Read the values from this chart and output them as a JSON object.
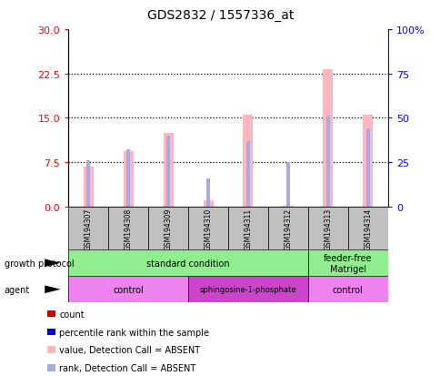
{
  "title": "GDS2832 / 1557336_at",
  "samples": [
    "GSM194307",
    "GSM194308",
    "GSM194309",
    "GSM194310",
    "GSM194311",
    "GSM194312",
    "GSM194313",
    "GSM194314"
  ],
  "count_values": [
    6.8,
    9.3,
    12.5,
    1.1,
    15.5,
    0.15,
    23.3,
    15.5
  ],
  "rank_values": [
    26,
    32,
    40,
    16,
    37,
    25,
    51,
    44
  ],
  "ylim_left": [
    0,
    30
  ],
  "ylim_right": [
    0,
    100
  ],
  "yticks_left": [
    0,
    7.5,
    15,
    22.5,
    30
  ],
  "yticks_right": [
    0,
    25,
    50,
    75,
    100
  ],
  "count_bar_width": 0.25,
  "rank_bar_width": 0.08,
  "count_color": "#FFB6C1",
  "rank_color": "#AAAADD",
  "growth_groups": [
    {
      "label": "standard condition",
      "start": 0,
      "end": 6,
      "color": "#90EE90"
    },
    {
      "label": "feeder-free\nMatrigel",
      "start": 6,
      "end": 8,
      "color": "#90EE90"
    }
  ],
  "agent_groups": [
    {
      "label": "control",
      "start": 0,
      "end": 3,
      "color": "#EE82EE"
    },
    {
      "label": "sphingosine-1-phosphate",
      "start": 3,
      "end": 6,
      "color": "#CC44CC"
    },
    {
      "label": "control",
      "start": 6,
      "end": 8,
      "color": "#EE82EE"
    }
  ],
  "legend_colors": [
    "#CC0000",
    "#0000CC",
    "#FFB6C1",
    "#AAAADD"
  ],
  "legend_labels": [
    "count",
    "percentile rank within the sample",
    "value, Detection Call = ABSENT",
    "rank, Detection Call = ABSENT"
  ],
  "sample_box_color": "#C0C0C0",
  "background_color": "#FFFFFF",
  "grid_color": "black",
  "arrow_color": "black"
}
